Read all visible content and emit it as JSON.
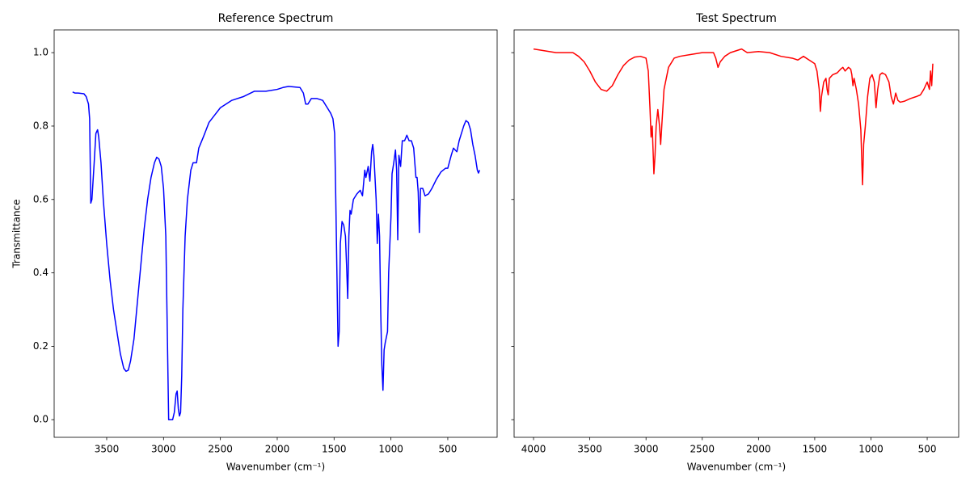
{
  "chart_data": [
    {
      "type": "line",
      "title": "Reference Spectrum",
      "xlabel": "Wavenumber (cm⁻¹)",
      "ylabel": "Transmittance",
      "color": "#0000ff",
      "x": [
        3800,
        3780,
        3750,
        3700,
        3680,
        3660,
        3650,
        3640,
        3630,
        3610,
        3595,
        3580,
        3570,
        3550,
        3530,
        3500,
        3470,
        3440,
        3410,
        3380,
        3350,
        3330,
        3310,
        3290,
        3260,
        3230,
        3200,
        3170,
        3140,
        3110,
        3080,
        3060,
        3040,
        3020,
        3000,
        2980,
        2965,
        2955,
        2940,
        2920,
        2905,
        2890,
        2880,
        2870,
        2860,
        2850,
        2840,
        2830,
        2810,
        2790,
        2760,
        2740,
        2710,
        2690,
        2650,
        2600,
        2550,
        2500,
        2400,
        2300,
        2200,
        2100,
        2000,
        1950,
        1900,
        1800,
        1770,
        1750,
        1730,
        1700,
        1650,
        1600,
        1560,
        1530,
        1510,
        1495,
        1485,
        1475,
        1465,
        1455,
        1445,
        1430,
        1415,
        1400,
        1390,
        1380,
        1370,
        1360,
        1350,
        1330,
        1300,
        1270,
        1250,
        1230,
        1220,
        1200,
        1185,
        1170,
        1160,
        1150,
        1130,
        1120,
        1110,
        1100,
        1090,
        1080,
        1070,
        1060,
        1050,
        1030,
        1020,
        1000,
        990,
        975,
        960,
        950,
        940,
        930,
        915,
        900,
        880,
        860,
        840,
        820,
        800,
        780,
        770,
        760,
        750,
        740,
        720,
        700,
        670,
        640,
        600,
        560,
        520,
        500,
        470,
        450,
        420,
        400,
        380,
        360,
        340,
        320,
        300,
        280,
        260,
        240,
        230,
        220
      ],
      "values": [
        0.893,
        0.89,
        0.89,
        0.888,
        0.88,
        0.86,
        0.82,
        0.59,
        0.6,
        0.7,
        0.78,
        0.79,
        0.77,
        0.7,
        0.6,
        0.48,
        0.38,
        0.3,
        0.24,
        0.18,
        0.14,
        0.132,
        0.135,
        0.16,
        0.22,
        0.32,
        0.42,
        0.52,
        0.6,
        0.66,
        0.7,
        0.715,
        0.71,
        0.69,
        0.63,
        0.5,
        0.2,
        0.0,
        0.0,
        0.0,
        0.02,
        0.07,
        0.078,
        0.03,
        0.01,
        0.02,
        0.12,
        0.3,
        0.5,
        0.6,
        0.68,
        0.7,
        0.7,
        0.74,
        0.77,
        0.81,
        0.83,
        0.85,
        0.87,
        0.88,
        0.895,
        0.895,
        0.9,
        0.905,
        0.908,
        0.905,
        0.89,
        0.86,
        0.86,
        0.875,
        0.875,
        0.87,
        0.85,
        0.835,
        0.82,
        0.78,
        0.6,
        0.4,
        0.2,
        0.24,
        0.48,
        0.54,
        0.53,
        0.5,
        0.42,
        0.33,
        0.5,
        0.57,
        0.56,
        0.6,
        0.615,
        0.625,
        0.61,
        0.68,
        0.66,
        0.69,
        0.65,
        0.73,
        0.75,
        0.72,
        0.6,
        0.48,
        0.56,
        0.5,
        0.3,
        0.15,
        0.08,
        0.19,
        0.21,
        0.24,
        0.4,
        0.55,
        0.67,
        0.7,
        0.735,
        0.68,
        0.49,
        0.72,
        0.69,
        0.76,
        0.76,
        0.775,
        0.76,
        0.76,
        0.74,
        0.66,
        0.66,
        0.62,
        0.51,
        0.63,
        0.63,
        0.61,
        0.615,
        0.63,
        0.655,
        0.675,
        0.685,
        0.685,
        0.72,
        0.74,
        0.73,
        0.76,
        0.78,
        0.8,
        0.815,
        0.81,
        0.79,
        0.75,
        0.72,
        0.68,
        0.672,
        0.68
      ],
      "xlim": [
        3962,
        66
      ],
      "ylim": [
        -0.048,
        1.062
      ],
      "xticks": [
        3500,
        3000,
        2500,
        2000,
        1500,
        1000,
        500
      ],
      "yticks": [
        {
          "value": 0,
          "label": "0.0"
        },
        {
          "value": 0.2,
          "label": "0.2"
        },
        {
          "value": 0.4,
          "label": "0.4"
        },
        {
          "value": 0.6,
          "label": "0.6"
        },
        {
          "value": 0.8,
          "label": "0.8"
        },
        {
          "value": 1,
          "label": "1.0"
        }
      ]
    },
    {
      "type": "line",
      "title": "Test Spectrum",
      "xlabel": "Wavenumber (cm⁻¹)",
      "color": "#ff0000",
      "sharey": true,
      "x": [
        4000,
        3900,
        3800,
        3700,
        3650,
        3600,
        3550,
        3500,
        3450,
        3400,
        3350,
        3300,
        3250,
        3200,
        3150,
        3100,
        3050,
        3000,
        2980,
        2965,
        2955,
        2945,
        2930,
        2920,
        2910,
        2895,
        2880,
        2870,
        2860,
        2840,
        2800,
        2750,
        2700,
        2600,
        2500,
        2400,
        2380,
        2360,
        2340,
        2300,
        2250,
        2200,
        2150,
        2100,
        2000,
        1900,
        1800,
        1700,
        1650,
        1600,
        1550,
        1500,
        1480,
        1460,
        1450,
        1440,
        1420,
        1400,
        1390,
        1380,
        1370,
        1340,
        1300,
        1270,
        1250,
        1230,
        1200,
        1180,
        1170,
        1160,
        1150,
        1130,
        1110,
        1090,
        1075,
        1065,
        1050,
        1030,
        1010,
        990,
        970,
        955,
        940,
        920,
        900,
        870,
        840,
        820,
        800,
        780,
        760,
        740,
        700,
        650,
        600,
        560,
        530,
        500,
        480,
        470,
        460,
        450
      ],
      "values": [
        1.01,
        1.005,
        1.0,
        1.0,
        1.0,
        0.99,
        0.975,
        0.95,
        0.92,
        0.9,
        0.895,
        0.91,
        0.94,
        0.965,
        0.98,
        0.988,
        0.99,
        0.985,
        0.95,
        0.85,
        0.77,
        0.8,
        0.67,
        0.72,
        0.8,
        0.845,
        0.8,
        0.75,
        0.8,
        0.9,
        0.96,
        0.985,
        0.99,
        0.995,
        1.0,
        1.0,
        0.985,
        0.96,
        0.975,
        0.99,
        1.0,
        1.005,
        1.01,
        1.0,
        1.003,
        1.0,
        0.99,
        0.985,
        0.98,
        0.99,
        0.98,
        0.97,
        0.95,
        0.9,
        0.84,
        0.88,
        0.92,
        0.93,
        0.9,
        0.885,
        0.93,
        0.94,
        0.945,
        0.955,
        0.96,
        0.95,
        0.96,
        0.955,
        0.94,
        0.91,
        0.93,
        0.9,
        0.86,
        0.79,
        0.64,
        0.75,
        0.8,
        0.88,
        0.93,
        0.94,
        0.92,
        0.85,
        0.9,
        0.94,
        0.945,
        0.94,
        0.92,
        0.88,
        0.86,
        0.89,
        0.87,
        0.865,
        0.868,
        0.875,
        0.88,
        0.885,
        0.9,
        0.92,
        0.9,
        0.95,
        0.91,
        0.97
      ],
      "xlim": [
        4173,
        220
      ],
      "ylim": [
        -0.048,
        1.062
      ],
      "xticks": [
        4000,
        3500,
        3000,
        2500,
        2000,
        1500,
        1000,
        500
      ],
      "yticks": [
        {
          "value": 0,
          "label": "0.0"
        },
        {
          "value": 0.2,
          "label": "0.2"
        },
        {
          "value": 0.4,
          "label": "0.4"
        },
        {
          "value": 0.6,
          "label": "0.6"
        },
        {
          "value": 0.8,
          "label": "0.8"
        },
        {
          "value": 1,
          "label": "1.0"
        }
      ]
    }
  ]
}
